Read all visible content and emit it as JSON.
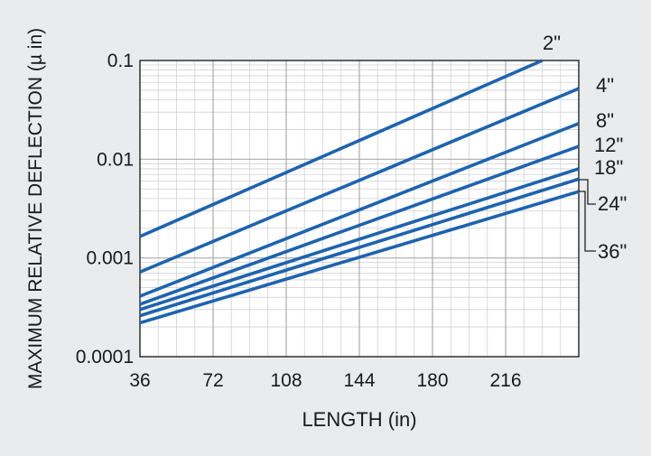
{
  "chart_data": {
    "type": "line",
    "xlabel": "LENGTH (in)",
    "ylabel": "MAXIMUM RELATIVE DEFLECTION (µ in)",
    "xlim": [
      36,
      252
    ],
    "ylim": [
      0.0001,
      0.1
    ],
    "y_scale": "log",
    "x_ticks": [
      36,
      72,
      108,
      144,
      180,
      216
    ],
    "x_tick_labels": [
      "36",
      "72",
      "108",
      "144",
      "180",
      "216"
    ],
    "y_ticks": [
      0.0001,
      0.001,
      0.01,
      0.1
    ],
    "y_tick_labels": [
      "0.0001",
      "0.001",
      "0.01",
      "0.1"
    ],
    "grid": true,
    "legend_placement": "right-end-labels",
    "line_color": "#1e63ae",
    "series": [
      {
        "name": "2\"",
        "x": [
          36,
          234
        ],
        "y": [
          0.00165,
          0.1
        ]
      },
      {
        "name": "4\"",
        "x": [
          36,
          252
        ],
        "y": [
          0.00072,
          0.052
        ]
      },
      {
        "name": "8\"",
        "x": [
          36,
          252
        ],
        "y": [
          0.00041,
          0.023
        ]
      },
      {
        "name": "12\"",
        "x": [
          36,
          252
        ],
        "y": [
          0.00034,
          0.0135
        ]
      },
      {
        "name": "18\"",
        "x": [
          36,
          252
        ],
        "y": [
          0.0003,
          0.008
        ]
      },
      {
        "name": "24\"",
        "x": [
          36,
          252
        ],
        "y": [
          0.00026,
          0.0063
        ]
      },
      {
        "name": "36\"",
        "x": [
          36,
          252
        ],
        "y": [
          0.00022,
          0.0047
        ]
      }
    ]
  }
}
